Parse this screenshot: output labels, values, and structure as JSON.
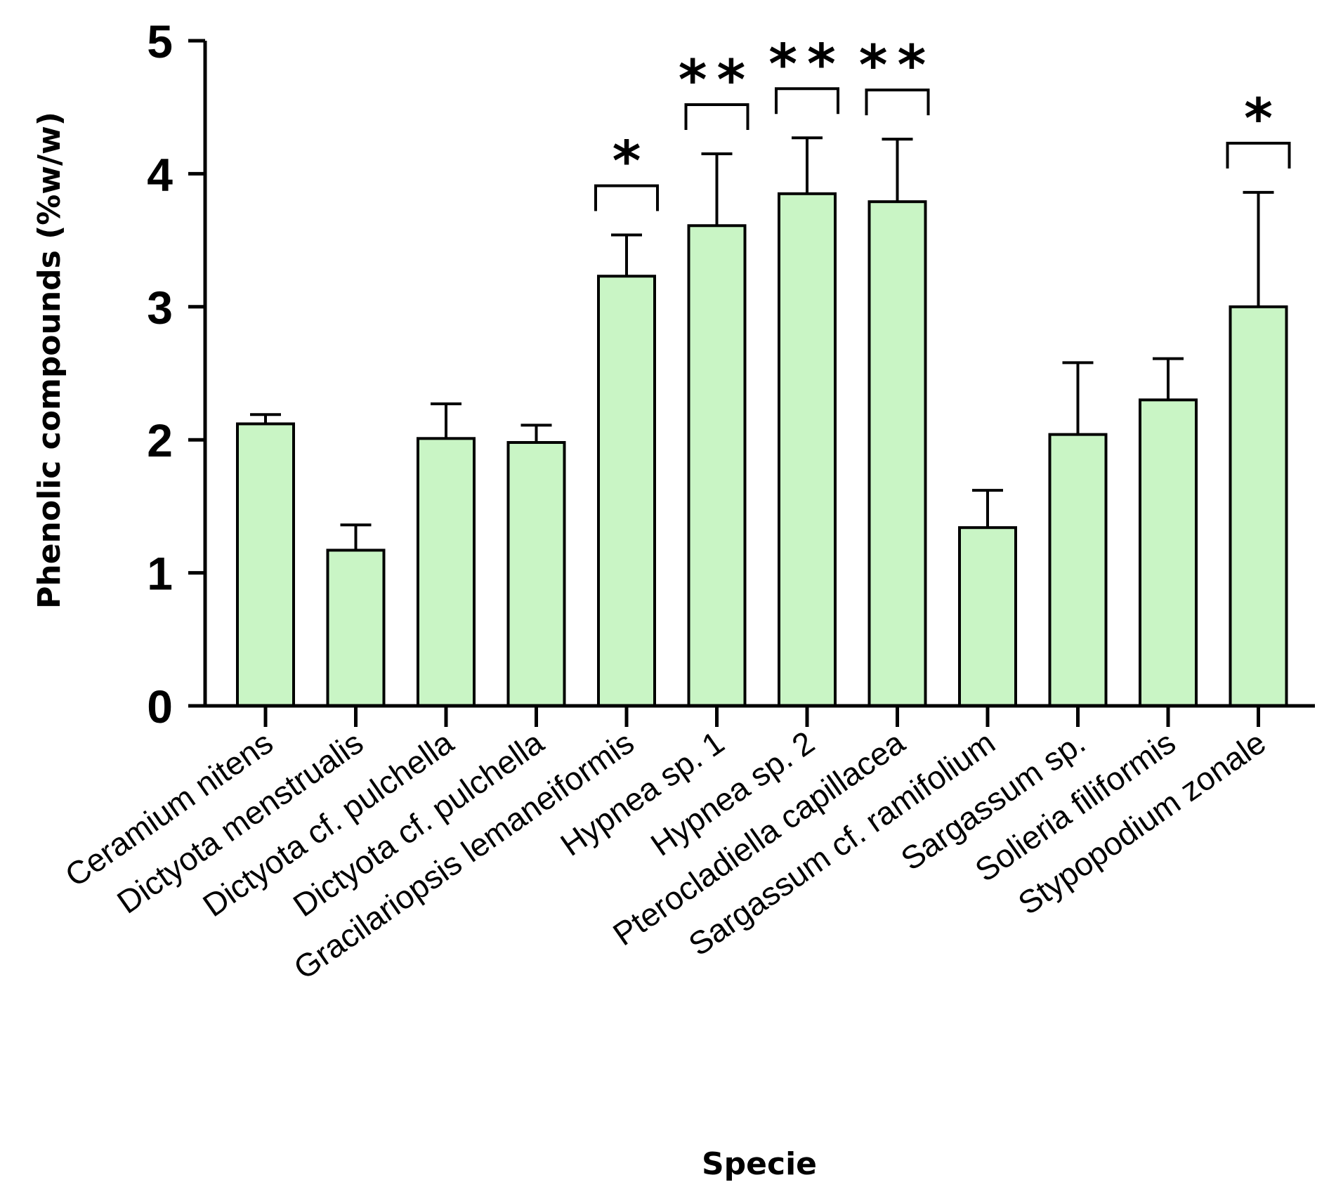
{
  "chart_data": {
    "type": "bar",
    "title": "",
    "xlabel": "Specie",
    "ylabel": "Phenolic compounds (%w/w)",
    "ylim": [
      0,
      5
    ],
    "yticks": [
      "0",
      "1",
      "2",
      "3",
      "4",
      "5"
    ],
    "grid": false,
    "bar_color": "#c9f5c5",
    "categories": [
      "Ceramium nitens",
      "Dictyota menstrualis",
      "Dictyota cf. pulchella",
      "Dictyota cf. pulchella",
      "Gracilariopsis lemaneiformis",
      "Hypnea sp. 1",
      "Hypnea sp. 2",
      "Pterocladiella capillacea",
      "Sargassum cf. ramifolium",
      "Sargassum sp.",
      "Solieria filiformis",
      "Stypopodium zonale"
    ],
    "values": [
      2.12,
      1.17,
      2.01,
      1.98,
      3.23,
      3.61,
      3.85,
      3.79,
      1.34,
      2.04,
      2.3,
      3.0
    ],
    "error_bars": [
      0.07,
      0.19,
      0.26,
      0.13,
      0.31,
      0.54,
      0.42,
      0.47,
      0.28,
      0.54,
      0.31,
      0.86
    ],
    "significance": [
      "",
      "",
      "",
      "",
      "*",
      "**",
      "**",
      "**",
      "",
      "",
      "",
      "*"
    ]
  }
}
